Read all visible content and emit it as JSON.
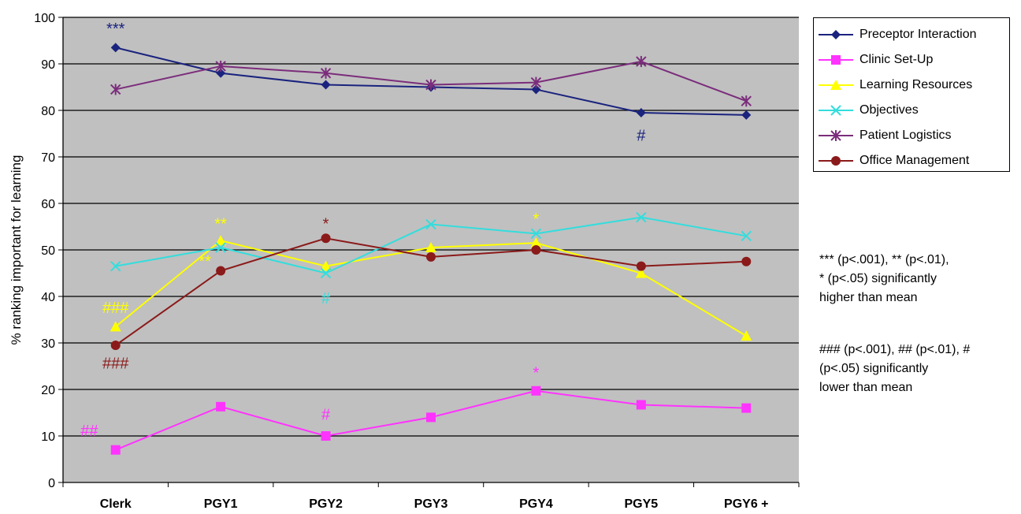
{
  "chart_data": {
    "type": "line",
    "ylabel": "% ranking important for learning",
    "ylim": [
      0,
      100
    ],
    "yticks": [
      0,
      10,
      20,
      30,
      40,
      50,
      60,
      70,
      80,
      90,
      100
    ],
    "grid": true,
    "legend_position": "right",
    "categories": [
      "Clerk",
      "PGY1",
      "PGY2",
      "PGY3",
      "PGY4",
      "PGY5",
      "PGY6 +"
    ],
    "series": [
      {
        "name": "Preceptor Interaction",
        "color": "#1a237e",
        "marker": "diamond",
        "values": [
          93.5,
          88,
          85.5,
          85,
          84.5,
          79.5,
          79
        ]
      },
      {
        "name": "Clinic Set-Up",
        "color": "#ff33ff",
        "marker": "square",
        "values": [
          7,
          16.3,
          10,
          14,
          19.7,
          16.7,
          16
        ]
      },
      {
        "name": "Learning Resources",
        "color": "#ffff00",
        "marker": "triangle",
        "values": [
          33.5,
          52,
          46.5,
          50.5,
          51.5,
          45,
          31.5
        ]
      },
      {
        "name": "Objectives",
        "color": "#33dddd",
        "marker": "x",
        "values": [
          46.5,
          50.5,
          45,
          55.5,
          53.5,
          57,
          53
        ]
      },
      {
        "name": "Patient Logistics",
        "color": "#7b2d7b",
        "marker": "asterisk",
        "values": [
          84.5,
          89.5,
          88,
          85.5,
          86,
          90.5,
          82
        ]
      },
      {
        "name": "Office Management",
        "color": "#8b1a1a",
        "marker": "circle",
        "values": [
          29.5,
          45.5,
          52.5,
          48.5,
          50,
          46.5,
          47.5
        ]
      }
    ],
    "annotations": [
      {
        "text": "***",
        "series": 0,
        "category": 0,
        "y": 97.5,
        "color": "#1a237e"
      },
      {
        "text": "#",
        "series": 0,
        "category": 5,
        "y": 74.5,
        "color": "#1a237e"
      },
      {
        "text": "**",
        "series": 2,
        "category": 1,
        "y": 55.5,
        "color": "#ffff00"
      },
      {
        "text": "**",
        "series": 2,
        "category": 0.85,
        "y": 47.5,
        "color": "#ffff00"
      },
      {
        "text": "###",
        "series": 2,
        "category": 0,
        "y": 37.5,
        "color": "#ffff00"
      },
      {
        "text": "*",
        "series": 2,
        "category": 4,
        "y": 56.5,
        "color": "#ffff00"
      },
      {
        "text": "*",
        "series": 5,
        "category": 2,
        "y": 55.5,
        "color": "#8b1a1a"
      },
      {
        "text": "###",
        "series": 5,
        "category": 0,
        "y": 25.5,
        "color": "#8b1a1a"
      },
      {
        "text": "#",
        "series": 3,
        "category": 2,
        "y": 39.5,
        "color": "#33dddd"
      },
      {
        "text": "##",
        "series": 1,
        "category": -0.25,
        "y": 11,
        "color": "#ff33ff"
      },
      {
        "text": "#",
        "series": 1,
        "category": 2,
        "y": 14.5,
        "color": "#ff33ff"
      },
      {
        "text": "*",
        "series": 1,
        "category": 4,
        "y": 23.5,
        "color": "#ff33ff"
      }
    ]
  },
  "notes": {
    "higher": [
      "*** (p<.001),  ** (p<.01),",
      " * (p<.05) significantly",
      "higher than mean"
    ],
    "lower": [
      "### (p<.001),  ## (p<.01), #",
      "(p<.05) significantly",
      "lower than mean"
    ]
  }
}
